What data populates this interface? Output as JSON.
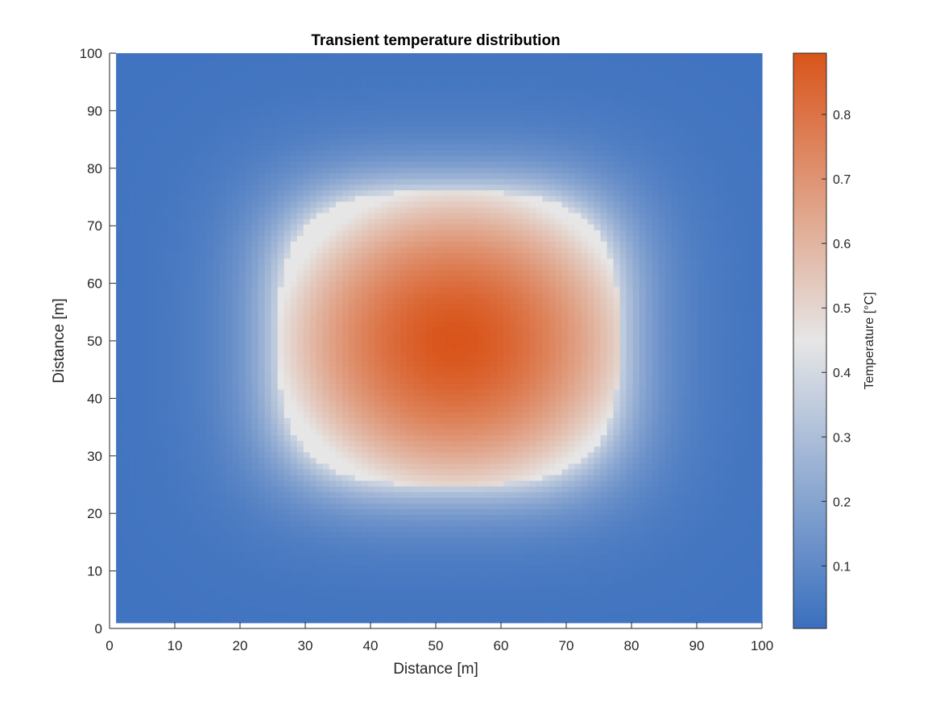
{
  "chart_data": {
    "type": "heatmap",
    "title": "Transient temperature distribution",
    "xlabel": "Distance [m]",
    "ylabel": "Distance [m]",
    "xlim": [
      0,
      100
    ],
    "ylim": [
      0,
      100
    ],
    "xticks": [
      0,
      10,
      20,
      30,
      40,
      50,
      60,
      70,
      80,
      90,
      100
    ],
    "yticks": [
      0,
      10,
      20,
      30,
      40,
      50,
      60,
      70,
      80,
      90,
      100
    ],
    "data_extent": {
      "x": [
        1,
        100
      ],
      "y": [
        1,
        100
      ]
    },
    "grid_points": 100,
    "field": {
      "description": "Diffused hot square patch",
      "hot_region": {
        "x": [
          26,
          78
        ],
        "y": [
          25,
          76
        ]
      },
      "peak": {
        "x": 53,
        "y": 50,
        "value": 0.895
      },
      "min_value": 0.003,
      "corner_value": 0.02
    },
    "colorbar": {
      "label": "Temperature [°C]",
      "limits": [
        0.003,
        0.895
      ],
      "ticks": [
        0.1,
        0.2,
        0.3,
        0.4,
        0.5,
        0.6,
        0.7,
        0.8
      ],
      "colormap": [
        {
          "stop": 0.0,
          "color": "#3a6fbe"
        },
        {
          "stop": 0.5,
          "color": "#e6e6e6"
        },
        {
          "stop": 1.0,
          "color": "#d9541a"
        }
      ]
    },
    "grid": false,
    "legend": "none"
  }
}
